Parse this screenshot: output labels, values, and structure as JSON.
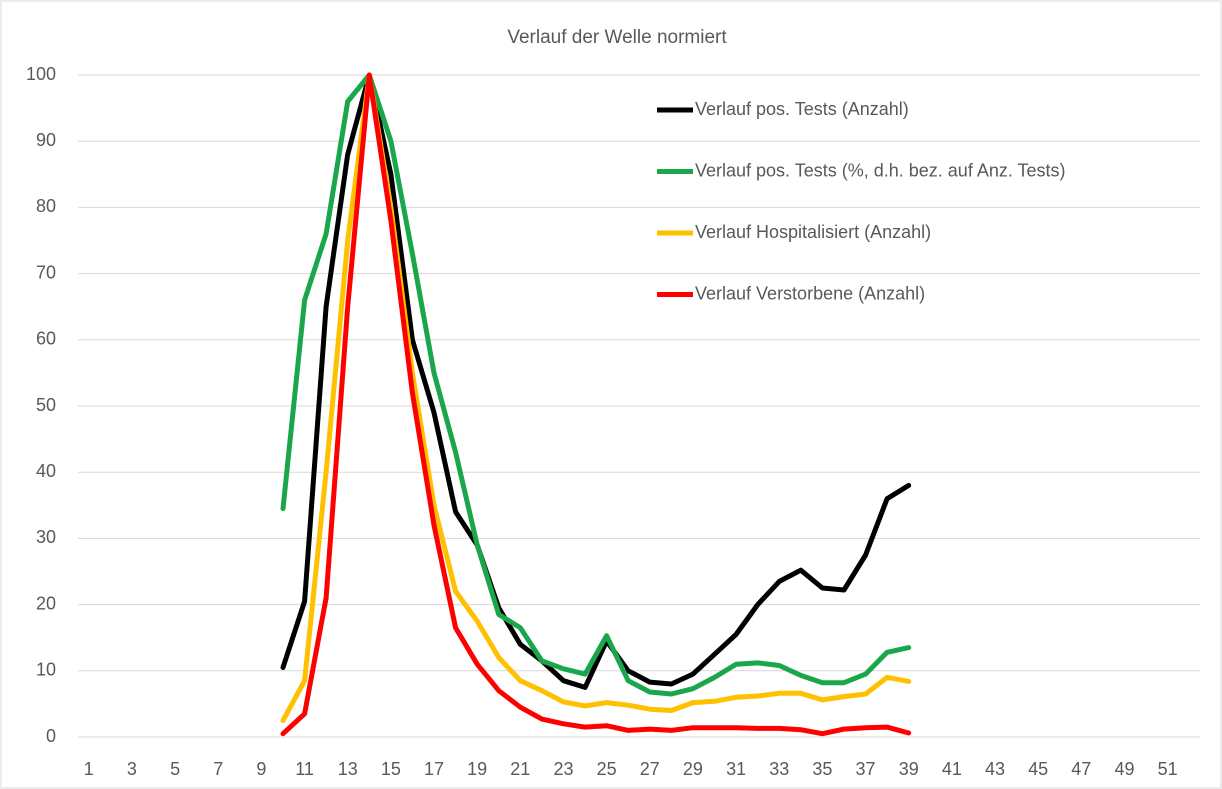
{
  "chart_data": {
    "type": "line",
    "title": "Verlauf der Welle normiert",
    "categories": [
      1,
      null,
      3,
      null,
      5,
      null,
      7,
      null,
      9,
      null,
      11,
      null,
      13,
      null,
      15,
      null,
      17,
      null,
      19,
      null,
      21,
      null,
      23,
      null,
      25,
      null,
      27,
      null,
      29,
      null,
      31,
      null,
      33,
      null,
      35,
      null,
      37,
      null,
      39,
      null,
      41,
      null,
      43,
      null,
      45,
      null,
      47,
      null,
      49,
      null,
      51,
      null
    ],
    "series": [
      {
        "name": "Verlauf pos. Tests (Anzahl)",
        "color": "#000000",
        "values": [
          null,
          null,
          null,
          null,
          null,
          null,
          null,
          null,
          null,
          10.5,
          20.5,
          65,
          88,
          100,
          85,
          60,
          49,
          34,
          29,
          19.5,
          14,
          11.5,
          8.5,
          7.5,
          14.5,
          10,
          8.3,
          8,
          9.5,
          12.5,
          15.5,
          20,
          23.5,
          25.2,
          22.5,
          22.2,
          27.5,
          36,
          38,
          null,
          null,
          null,
          null,
          null,
          null,
          null,
          null,
          null,
          null,
          null,
          null,
          null
        ]
      },
      {
        "name": "Verlauf pos. Tests (%, d.h. bez. auf Anz. Tests)",
        "color": "#1aa64a",
        "values": [
          null,
          null,
          null,
          null,
          null,
          null,
          null,
          null,
          null,
          34.5,
          66,
          76,
          96,
          100,
          90,
          73,
          55,
          43,
          29,
          18.5,
          16.5,
          11.5,
          10.3,
          9.5,
          15.3,
          8.5,
          6.8,
          6.5,
          7.3,
          9,
          11,
          11.2,
          10.8,
          9.3,
          8.2,
          8.2,
          9.5,
          12.8,
          13.5,
          null,
          null,
          null,
          null,
          null,
          null,
          null,
          null,
          null,
          null,
          null,
          null,
          null
        ]
      },
      {
        "name": "Verlauf Hospitalisiert (Anzahl)",
        "color": "#ffc000",
        "values": [
          null,
          null,
          null,
          null,
          null,
          null,
          null,
          null,
          null,
          2.5,
          8.5,
          40,
          75,
          100,
          80,
          55,
          35,
          22,
          17.5,
          12,
          8.5,
          7,
          5.3,
          4.7,
          5.2,
          4.8,
          4.2,
          4,
          5.2,
          5.4,
          6,
          6.2,
          6.6,
          6.6,
          5.6,
          6.1,
          6.5,
          9,
          8.4,
          null,
          null,
          null,
          null,
          null,
          null,
          null,
          null,
          null,
          null,
          null,
          null,
          null
        ]
      },
      {
        "name": "Verlauf Verstorbene (Anzahl)",
        "color": "#ff0000",
        "values": [
          null,
          null,
          null,
          null,
          null,
          null,
          null,
          null,
          null,
          0.5,
          3.5,
          21,
          65,
          100,
          78,
          52,
          32,
          16.5,
          11,
          7,
          4.5,
          2.7,
          2,
          1.5,
          1.7,
          1,
          1.2,
          1,
          1.4,
          1.4,
          1.4,
          1.3,
          1.3,
          1.1,
          0.5,
          1.2,
          1.4,
          1.5,
          0.6,
          null,
          null,
          null,
          null,
          null,
          null,
          null,
          null,
          null,
          null,
          null,
          null,
          null
        ]
      }
    ],
    "ylim": [
      0,
      100
    ],
    "yticks": [
      0,
      10,
      20,
      30,
      40,
      50,
      60,
      70,
      80,
      90,
      100
    ],
    "grid": true,
    "legend": "upper right"
  }
}
